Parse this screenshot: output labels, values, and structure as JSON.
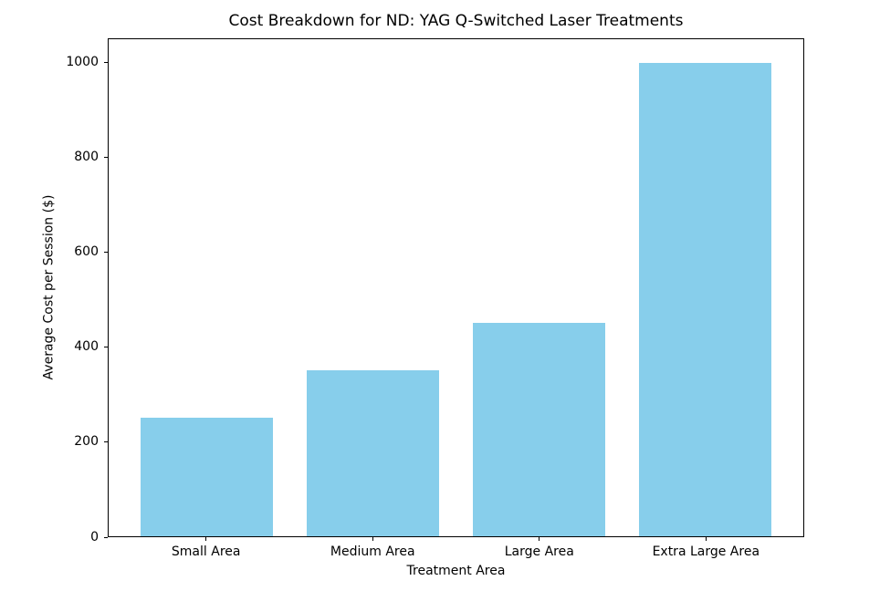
{
  "chart_data": {
    "type": "bar",
    "title": "Cost Breakdown for ND: YAG Q-Switched Laser Treatments",
    "xlabel": "Treatment Area",
    "ylabel": "Average Cost per Session ($)",
    "categories": [
      "Small Area",
      "Medium Area",
      "Large Area",
      "Extra Large Area"
    ],
    "values": [
      250,
      350,
      450,
      1000
    ],
    "yticks": [
      0,
      200,
      400,
      600,
      800,
      1000
    ],
    "ylim": [
      0,
      1050
    ],
    "bar_color": "#87CEEB",
    "axis_color": "#000000",
    "background_color": "#ffffff",
    "grid": false,
    "legend": "none"
  }
}
